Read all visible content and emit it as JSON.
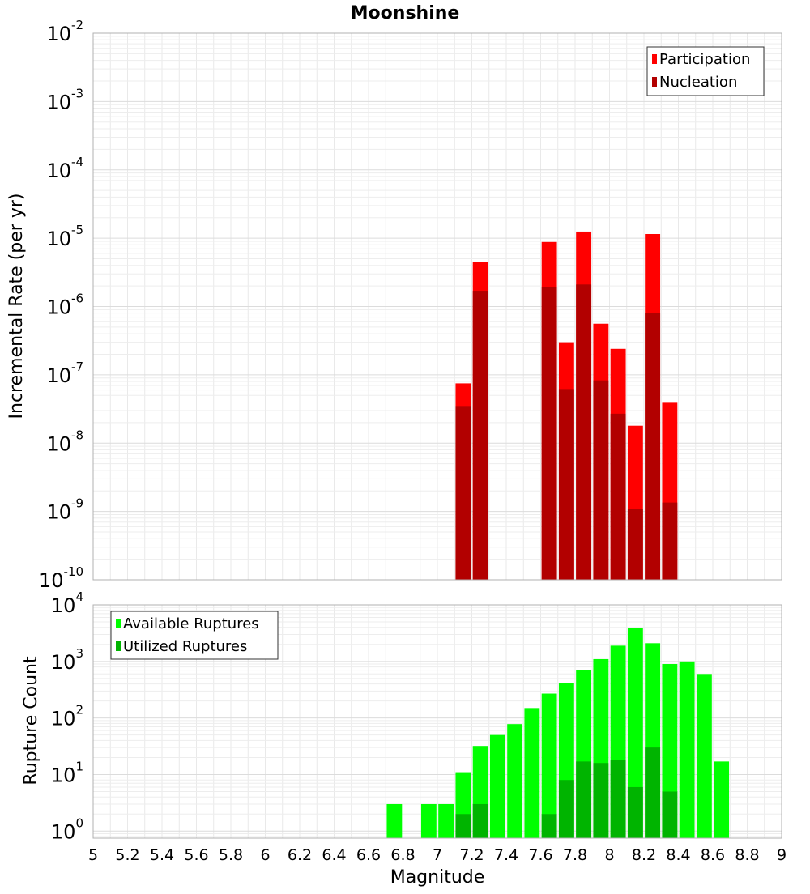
{
  "chart_data": [
    {
      "type": "bar",
      "title": "Moonshine",
      "xlabel": "Magnitude",
      "ylabel": "Incremental Rate (per yr)",
      "xlim": [
        5,
        9
      ],
      "ylim": [
        1e-10,
        0.01
      ],
      "yscale": "log",
      "grid": true,
      "legend_position": "top-right",
      "bin_width": 0.1,
      "y_tick_exponents": [
        "-10",
        "-9",
        "-8",
        "-7",
        "-6",
        "-5",
        "-4",
        "-3",
        "-2"
      ],
      "series": [
        {
          "name": "Participation",
          "color": "#ff0000",
          "x": [
            7.15,
            7.25,
            7.65,
            7.75,
            7.85,
            7.95,
            8.05,
            8.15,
            8.25,
            8.35
          ],
          "values": [
            7.5e-08,
            4.5e-06,
            8.8e-06,
            3e-07,
            1.25e-05,
            5.6e-07,
            2.4e-07,
            1.8e-08,
            1.15e-05,
            3.9e-08
          ]
        },
        {
          "name": "Nucleation",
          "color": "#b20000",
          "x": [
            7.15,
            7.25,
            7.65,
            7.75,
            7.85,
            7.95,
            8.05,
            8.15,
            8.25,
            8.35
          ],
          "values": [
            3.5e-08,
            1.7e-06,
            1.9e-06,
            6.2e-08,
            2.1e-06,
            8.3e-08,
            2.7e-08,
            1.1e-09,
            8e-07,
            1.35e-09
          ]
        }
      ]
    },
    {
      "type": "bar",
      "xlabel": "Magnitude",
      "ylabel": "Rupture Count",
      "xlim": [
        5,
        9
      ],
      "ylim": [
        0.75,
        10000
      ],
      "yscale": "log",
      "grid": true,
      "legend_position": "top-left",
      "bin_width": 0.1,
      "x_ticks": [
        "5",
        "5.2",
        "5.4",
        "5.6",
        "5.8",
        "6",
        "6.2",
        "6.4",
        "6.6",
        "6.8",
        "7",
        "7.2",
        "7.4",
        "7.6",
        "7.8",
        "8",
        "8.2",
        "8.4",
        "8.6",
        "8.8",
        "9"
      ],
      "y_tick_exponents": [
        "0",
        "1",
        "2",
        "3",
        "4"
      ],
      "series": [
        {
          "name": "Available Ruptures",
          "color": "#00ff00",
          "x": [
            6.75,
            6.95,
            7.05,
            7.15,
            7.25,
            7.35,
            7.45,
            7.55,
            7.65,
            7.75,
            7.85,
            7.95,
            8.05,
            8.15,
            8.25,
            8.35,
            8.45,
            8.55,
            8.65
          ],
          "values": [
            3,
            3,
            3,
            11,
            32,
            50,
            78,
            150,
            270,
            420,
            700,
            1100,
            1900,
            3900,
            2100,
            900,
            1000,
            600,
            17
          ]
        },
        {
          "name": "Utilized Ruptures",
          "color": "#00b400",
          "x": [
            7.15,
            7.25,
            7.65,
            7.75,
            7.85,
            7.95,
            8.05,
            8.15,
            8.25,
            8.35
          ],
          "values": [
            2,
            3,
            2,
            8,
            17,
            16,
            18,
            6,
            30,
            5
          ]
        }
      ]
    }
  ]
}
